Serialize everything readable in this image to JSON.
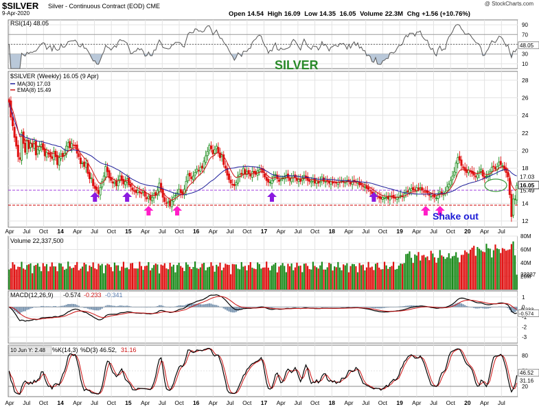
{
  "header": {
    "symbol": "$SILVER",
    "name": "Silver - Continuous Contract (EOD) CME",
    "date": "9-Apr-2020",
    "copyright": "@ StockCharts.com",
    "open_label": "Open",
    "open": "14.54",
    "high_label": "High",
    "high": "16.09",
    "low_label": "Low",
    "low": "14.35",
    "close_value": "16.05",
    "volume_label": "Volume",
    "volume": "22.3M",
    "chg_label": "Chg",
    "chg": "+1.56 (+10.76%)"
  },
  "chart_data": {
    "type": "line",
    "x_labels": [
      "Apr",
      "Jul",
      "Oct",
      "14",
      "Apr",
      "Jul",
      "Oct",
      "15",
      "Apr",
      "Jul",
      "Oct",
      "16",
      "Apr",
      "Jul",
      "Oct",
      "17",
      "Apr",
      "Jul",
      "Oct",
      "18",
      "Apr",
      "Jul",
      "Oct",
      "19",
      "Apr",
      "Jul",
      "Oct",
      "20",
      "Apr",
      "Jul"
    ],
    "rsi": {
      "label": "RSI(14) 48.05",
      "ticks": [
        90,
        70,
        50,
        30,
        10
      ],
      "last": "48.05",
      "ylim": [
        0,
        100
      ]
    },
    "title_annotation": "SILVER",
    "price": {
      "legend_main": "$SILVER (Weekly) 16.05 (9 Apr)",
      "legend_ma": "MA(30) 17.03",
      "legend_ema": "EMA(8) 15.49",
      "ticks": [
        28,
        26,
        24,
        22,
        20,
        18,
        16,
        14,
        12
      ],
      "ylim": [
        11.3,
        29
      ],
      "last_price": "16.05",
      "last_ma": "17.03",
      "last_ema": "15.49",
      "support_purple": 15.5,
      "support_red": 13.8,
      "annotation": "Shake out",
      "close": [
        25.5,
        23.8,
        22.8,
        21.5,
        20.5,
        19.3,
        19.0,
        22.0,
        20.8,
        19.8,
        21.2,
        20.2,
        20.8,
        20.4,
        21.0,
        19.5,
        20.1,
        20.5,
        20.7,
        20.1,
        19.4,
        19.8,
        19.6,
        19.3,
        19.1,
        19.9,
        19.3,
        18.4,
        19.2,
        19.6,
        19.3,
        19.7,
        20.5,
        20.9,
        20.3,
        20.8,
        20.6,
        20.5,
        19.7,
        19.3,
        18.5,
        18.6,
        18.2,
        18.6,
        17.4,
        16.8,
        16.9,
        16.0,
        15.7,
        15.5,
        15.1,
        15.8,
        16.5,
        17.1,
        18.2,
        17.6,
        16.9,
        16.6,
        16.3,
        16.4,
        16.0,
        16.7,
        17.1,
        16.6,
        16.2,
        16.5,
        16.8,
        16.1,
        15.9,
        15.5,
        15.4,
        15.2,
        15.5,
        15.2,
        15.1,
        15.4,
        14.8,
        14.5,
        14.8,
        14.4,
        14.7,
        15.1,
        14.9,
        15.5,
        16.3,
        15.5,
        14.7,
        14.2,
        14.0,
        14.2,
        13.7,
        14.3,
        14.7,
        14.9,
        15.2,
        15.6,
        15.2,
        15.0,
        15.6,
        16.5,
        17.3,
        17.1,
        16.8,
        17.1,
        17.5,
        17.9,
        17.7,
        18.1,
        18.0,
        18.8,
        19.4,
        19.9,
        20.6,
        20.2,
        19.6,
        20.1,
        20.5,
        19.8,
        19.2,
        19.5,
        18.4,
        18.0,
        17.2,
        16.7,
        16.3,
        16.1,
        16.0,
        16.4,
        17.1,
        17.3,
        17.3,
        18.0,
        17.3,
        17.6,
        17.4,
        17.1,
        17.6,
        17.5,
        17.3,
        17.7,
        17.8,
        17.9,
        17.5,
        17.0,
        16.6,
        16.4,
        16.4,
        16.6,
        17.1,
        17.3,
        16.8,
        16.5,
        16.7,
        16.9,
        17.0,
        17.2,
        16.9,
        16.6,
        16.9,
        17.1,
        16.9,
        16.6,
        16.7,
        16.5,
        16.9,
        17.2,
        16.9,
        16.6,
        16.5,
        16.5,
        16.7,
        16.3,
        16.6,
        16.3,
        16.5,
        17.0,
        16.5,
        16.5,
        16.5,
        16.3,
        16.5,
        16.3,
        16.4,
        16.3,
        16.4,
        16.4,
        16.6,
        16.4,
        16.4,
        16.6,
        16.5,
        16.2,
        16.5,
        16.5,
        16.4,
        16.4,
        16.1,
        16.1,
        15.9,
        15.9,
        15.7,
        15.6,
        15.4,
        15.1,
        14.8,
        15.0,
        14.8,
        14.6,
        14.5,
        14.7,
        14.6,
        14.7,
        14.5,
        14.9,
        14.8,
        14.6,
        14.6,
        14.7,
        14.7,
        14.9,
        14.8,
        15.1,
        15.3,
        15.3,
        15.6,
        15.7,
        15.5,
        15.5,
        15.8,
        15.6,
        15.8,
        15.5,
        15.3,
        15.3,
        15.2,
        14.9,
        14.8,
        14.9,
        14.7,
        14.6,
        15.0,
        15.3,
        15.1,
        15.1,
        15.3,
        15.9,
        16.2,
        16.6,
        17.1,
        17.6,
        18.6,
        19.2,
        18.9,
        18.3,
        18.1,
        17.7,
        17.5,
        17.8,
        17.6,
        17.4,
        17.2,
        17.0,
        17.3,
        17.6,
        17.9,
        17.1,
        16.9,
        17.1,
        17.3,
        17.6,
        18.1,
        18.2,
        17.9,
        18.2,
        18.7,
        18.4,
        18.3,
        17.9,
        17.5,
        17.0,
        15.0,
        12.5,
        14.5,
        14.5,
        16.05
      ]
    },
    "volume": {
      "label": "Volume 22,337,500",
      "ticks": [
        "80M",
        "60M",
        "40M",
        "20M"
      ],
      "last": "22337",
      "ylim": [
        0,
        80
      ]
    },
    "macd": {
      "label_main": "MACD(12,26,9)",
      "label_v1": "-0.574",
      "label_v2": "-0.233",
      "label_v3": "-0.341",
      "ticks": [
        1,
        0,
        -1,
        -2,
        -3
      ],
      "last_signal": "-0.233",
      "last_macd": "-0.574",
      "ylim": [
        -3.6,
        1.6
      ]
    },
    "stoch": {
      "tooltip": "10 Jun Y: 2.48",
      "label_k": "%K(14,3)",
      "label_d": "%D(3) 46.52,",
      "label_d2": "31.16",
      "ticks": [
        80,
        50,
        20
      ],
      "last_k": "46.52",
      "last_d": "31.16",
      "ylim": [
        0,
        100
      ]
    },
    "colors": {
      "up": "#1a8a1a",
      "down": "#e01010",
      "ma": "#1c1c9a",
      "ema": "#cc1111",
      "rsi_line": "#555555",
      "purple_arrow": "#8a1ae0",
      "magenta_arrow": "#ff1ec8",
      "support_purple": "#a040e0",
      "support_red": "#cc0000",
      "silver_text": "#2a8a2a",
      "shakeout_text": "#1a1ad6",
      "circle": "#3a9a3a"
    },
    "arrows": [
      {
        "type": "purple",
        "week": 48
      },
      {
        "type": "purple",
        "week": 66
      },
      {
        "type": "magenta",
        "week": 78
      },
      {
        "type": "magenta",
        "week": 94
      },
      {
        "type": "purple",
        "week": 147
      },
      {
        "type": "purple",
        "week": 204
      },
      {
        "type": "magenta",
        "week": 233
      },
      {
        "type": "magenta",
        "week": 241
      }
    ]
  }
}
